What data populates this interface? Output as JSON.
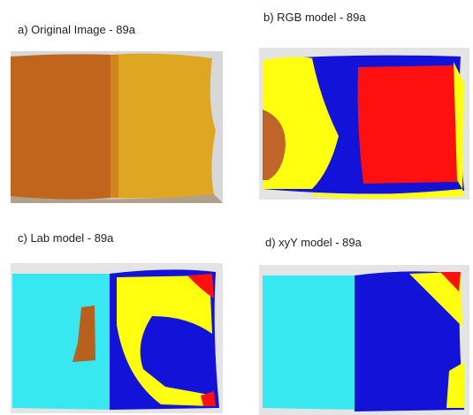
{
  "panels": [
    {
      "label": "a) Original Image - 89a"
    },
    {
      "label": "b) RGB model - 89a"
    },
    {
      "label": "c) Lab model - 89a"
    },
    {
      "label": "d) xyY model - 89a"
    }
  ]
}
